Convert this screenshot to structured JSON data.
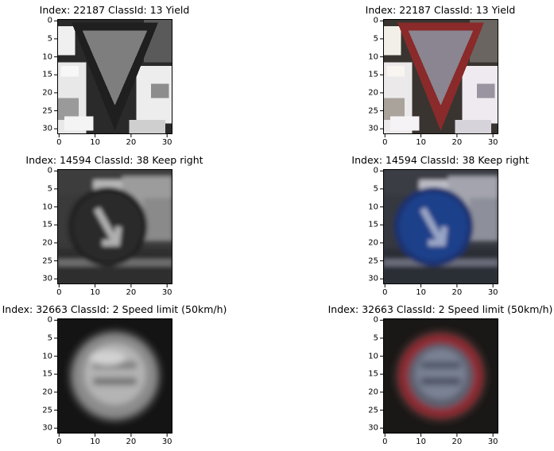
{
  "figures": [
    {
      "title": "Index: 22187 ClassId: 13 Yield",
      "variant": "gray",
      "sign": "yield"
    },
    {
      "title": "Index: 22187 ClassId: 13 Yield",
      "variant": "color",
      "sign": "yield"
    },
    {
      "title": "Index: 14594 ClassId: 38 Keep right",
      "variant": "gray",
      "sign": "keep-right"
    },
    {
      "title": "Index: 14594 ClassId: 38 Keep right",
      "variant": "color",
      "sign": "keep-right"
    },
    {
      "title": "Index: 32663 ClassId: 2 Speed limit (50km/h)",
      "variant": "gray",
      "sign": "speed-limit"
    },
    {
      "title": "Index: 32663 ClassId: 2 Speed limit (50km/h)",
      "variant": "color",
      "sign": "speed-limit"
    }
  ],
  "axis": {
    "y_ticks": [
      "0",
      "5",
      "10",
      "15",
      "20",
      "25",
      "30"
    ],
    "x_ticks": [
      "0",
      "10",
      "20",
      "30"
    ],
    "y_values": [
      0,
      5,
      10,
      15,
      20,
      25,
      30
    ],
    "x_values": [
      0,
      10,
      20,
      30
    ],
    "range": [
      -0.5,
      31.5
    ]
  },
  "colors": {
    "yield_red": "#8a2a2a",
    "keep_right_blue": "#1e3f8a",
    "speed_red": "#8e2a33"
  }
}
